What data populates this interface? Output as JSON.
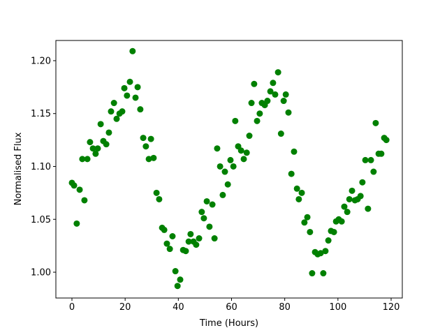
{
  "chart_data": {
    "type": "scatter",
    "xlabel": "Time (Hours)",
    "ylabel": "Normalised Flux",
    "color": "#008000",
    "xlim": [
      -6.04,
      124.2
    ],
    "ylim": [
      0.9756,
      1.2191
    ],
    "xticks": [
      0,
      20,
      40,
      60,
      80,
      100,
      120
    ],
    "yticks": [
      {
        "value": 1.0,
        "label": "1.00"
      },
      1.05,
      {
        "value": 1.1,
        "label": "1.10"
      },
      1.15,
      {
        "value": 1.2,
        "label": "1.20"
      }
    ],
    "x": [
      0,
      0.8,
      1.8,
      2.9,
      3.9,
      4.7,
      5.8,
      6.8,
      7.9,
      8.9,
      9.7,
      10.8,
      11.8,
      12.9,
      13.9,
      14.7,
      15.8,
      16.8,
      17.9,
      18.9,
      19.7,
      20.7,
      21.8,
      22.8,
      23.9,
      24.7,
      25.7,
      26.8,
      27.8,
      28.9,
      29.7,
      30.7,
      31.8,
      32.8,
      33.9,
      34.7,
      35.7,
      36.8,
      37.8,
      38.9,
      39.7,
      40.7,
      41.8,
      42.8,
      43.9,
      44.6,
      45.7,
      46.7,
      47.8,
      48.8,
      49.6,
      50.7,
      51.7,
      52.8,
      53.6,
      54.6,
      55.7,
      56.7,
      57.5,
      58.6,
      59.6,
      60.7,
      61.4,
      62.5,
      63.6,
      64.6,
      65.7,
      66.7,
      67.5,
      68.5,
      69.6,
      70.6,
      71.4,
      72.5,
      73.5,
      74.6,
      75.6,
      76.4,
      77.5,
      78.6,
      79.6,
      80.4,
      81.4,
      82.5,
      83.5,
      84.6,
      85.3,
      86.4,
      87.4,
      88.5,
      89.5,
      90.3,
      91.4,
      92.4,
      93.5,
      94.5,
      95.3,
      96.4,
      97.4,
      98.5,
      99.3,
      100.3,
      101.4,
      102.4,
      103.5,
      104.3,
      105.3,
      106.4,
      107.4,
      108.5,
      109.2,
      110.3,
      111.3,
      112.4,
      113.4,
      114.2,
      115.3,
      116.3,
      117.4,
      118.2
    ],
    "values": [
      1.0845,
      1.082,
      1.046,
      1.078,
      1.107,
      1.068,
      1.107,
      1.123,
      1.117,
      1.112,
      1.117,
      1.14,
      1.124,
      1.121,
      1.132,
      1.152,
      1.16,
      1.145,
      1.15,
      1.152,
      1.174,
      1.167,
      1.18,
      1.209,
      1.165,
      1.175,
      1.154,
      1.127,
      1.119,
      1.107,
      1.126,
      1.108,
      1.075,
      1.069,
      1.042,
      1.04,
      1.027,
      1.022,
      1.034,
      1.001,
      0.987,
      0.993,
      1.021,
      1.02,
      1.029,
      1.036,
      1.029,
      1.026,
      1.032,
      1.057,
      1.051,
      1.067,
      1.043,
      1.064,
      1.032,
      1.117,
      1.1,
      1.073,
      1.095,
      1.083,
      1.106,
      1.1,
      1.143,
      1.119,
      1.115,
      1.107,
      1.113,
      1.129,
      1.16,
      1.178,
      1.143,
      1.15,
      1.16,
      1.158,
      1.162,
      1.171,
      1.179,
      1.168,
      1.189,
      1.131,
      1.162,
      1.168,
      1.151,
      1.093,
      1.114,
      1.079,
      1.069,
      1.075,
      1.047,
      1.052,
      1.038,
      0.999,
      1.019,
      1.017,
      1.018,
      0.999,
      1.02,
      1.03,
      1.039,
      1.038,
      1.048,
      1.05,
      1.048,
      1.062,
      1.057,
      1.069,
      1.077,
      1.068,
      1.069,
      1.072,
      1.085,
      1.106,
      1.06,
      1.106,
      1.095,
      1.141,
      1.112,
      1.112,
      1.127,
      1.125
    ]
  }
}
